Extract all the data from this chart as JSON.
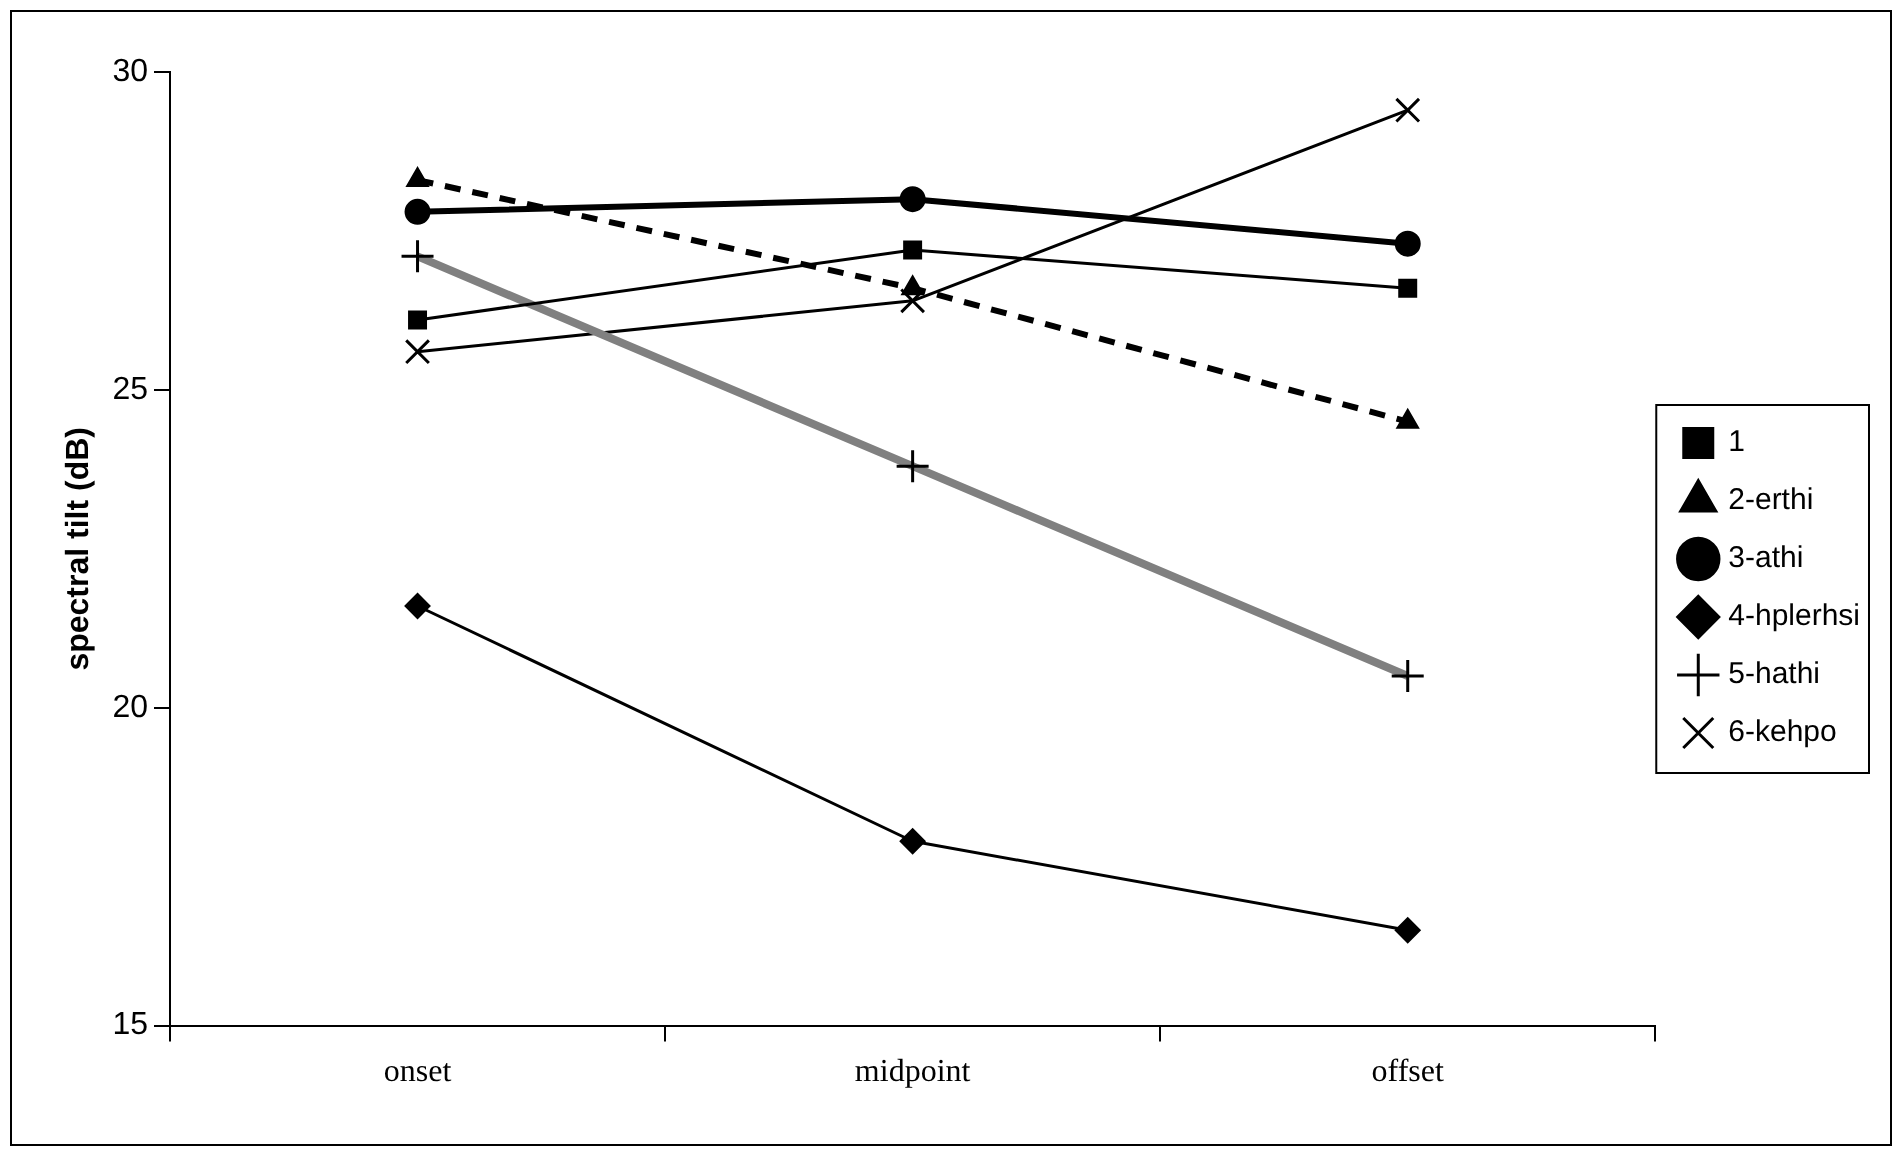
{
  "chart_data": {
    "type": "line",
    "ylabel": "spectral tilt (dB)",
    "categories": [
      "onset",
      "midpoint",
      "offset"
    ],
    "series": [
      {
        "name": "1",
        "color": "#000000",
        "marker": "square",
        "line_style": "solid",
        "values": [
          26.1,
          27.2,
          26.6
        ]
      },
      {
        "name": "2-erthi",
        "color": "#000000",
        "marker": "triangle",
        "line_style": "dashed",
        "values": [
          28.3,
          26.6,
          24.5
        ]
      },
      {
        "name": "3-athi",
        "color": "#000000",
        "marker": "circle",
        "line_style": "solid",
        "values": [
          27.8,
          28.0,
          27.3
        ]
      },
      {
        "name": "4-hplerhsi",
        "color": "#000000",
        "marker": "diamond",
        "line_style": "solid",
        "values": [
          21.6,
          17.9,
          16.5
        ]
      },
      {
        "name": "5-hathi",
        "color": "#808080",
        "marker": "cross",
        "line_style": "solid",
        "values": [
          27.1,
          23.8,
          20.5
        ]
      },
      {
        "name": "6-kehpo",
        "color": "#000000",
        "marker": "x",
        "line_style": "solid",
        "values": [
          25.6,
          26.4,
          29.4
        ]
      }
    ],
    "ylim": [
      15,
      30
    ],
    "yticks": [
      15,
      20,
      25,
      30
    ],
    "grid": false,
    "legend": "right"
  }
}
